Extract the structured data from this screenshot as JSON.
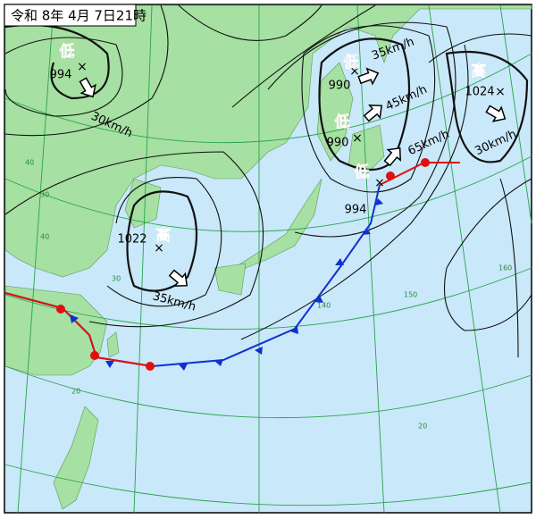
{
  "title": "令和 8年 4月 7日21時",
  "systems": [
    {
      "kind": "低",
      "pressure": 994,
      "speed": "30km/h"
    },
    {
      "kind": "高",
      "pressure": 1022,
      "speed": "35km/h"
    },
    {
      "kind": "低",
      "pressure": 990,
      "speed": "35km/h"
    },
    {
      "kind": "低",
      "pressure": 990,
      "speed": "45km/h"
    },
    {
      "kind": "低",
      "pressure": 994,
      "speed": "65km/h"
    },
    {
      "kind": "高",
      "pressure": 1024,
      "speed": "30km/h"
    }
  ],
  "grid_labels": [
    "40",
    "30",
    "20",
    "20",
    "140",
    "150",
    "160",
    "40",
    "30"
  ]
}
